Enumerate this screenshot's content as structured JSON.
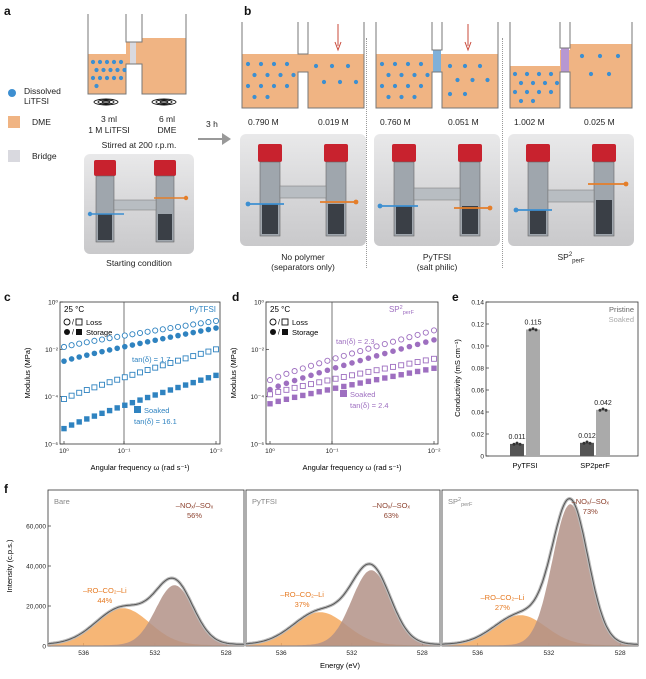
{
  "panel_labels": [
    "a",
    "b",
    "c",
    "d",
    "e",
    "f"
  ],
  "colors": {
    "orange": "#f0b483",
    "blue": "#3d8fd1",
    "bridge": "#d9d9df",
    "pytfsi": "#2f83c0",
    "sp2": "#9e6fc0",
    "pristine": "#555555",
    "soaked": "#aaaaaa",
    "ro_fill": "#f5a95e",
    "no_fill": "#b39287",
    "ro_text": "#e67a22",
    "no_text": "#8e4431"
  },
  "panel_a": {
    "legend": [
      {
        "label": "Dissolved LiTFSI",
        "icon": "blue-dot-icon"
      },
      {
        "label": "DME",
        "icon": "orange-square-icon"
      },
      {
        "label": "Bridge",
        "icon": "grey-square-icon"
      }
    ],
    "left_vol": "3 ml",
    "left_conc": "1 M LiTFSI",
    "right_vol": "6 ml",
    "right_conc": "DME",
    "stirred": "Stirred at 200 r.p.m.",
    "arrow_label": "3 h",
    "caption": "Starting condition"
  },
  "panel_b": {
    "cells": [
      {
        "left": "0.790 M",
        "right": "0.019 M",
        "caption1": "No polymer",
        "caption2": "(separators only)"
      },
      {
        "left": "0.760 M",
        "right": "0.051 M",
        "caption1": "PyTFSI",
        "caption2": "(salt philic)"
      },
      {
        "left": "1.002 M",
        "right": "0.025 M",
        "caption1": "SP",
        "caption_sup": "2",
        "caption_sub": "perF"
      }
    ]
  },
  "chart_data": [
    {
      "panel": "c",
      "type": "scatter",
      "temp": "25 °C",
      "title": "PyTFSI",
      "xlabel": "Angular frequency ω (rad s⁻¹)",
      "ylabel": "Modulus (MPa)",
      "x_ticks": [
        "10⁰",
        "10⁻¹",
        "10⁻²"
      ],
      "y_ticks": [
        "10⁰",
        "10⁻²",
        "10⁻⁴",
        "10⁻⁶"
      ],
      "ylim_log": [
        -6,
        0
      ],
      "legend_loss": "Loss",
      "legend_storage": "Storage",
      "annotations": [
        {
          "text": "tan(δ) = 1.7"
        },
        {
          "text": "Soaked"
        },
        {
          "text": "tan(δ) = 16.1"
        }
      ],
      "series": [
        {
          "kind": "pristine-loss",
          "marker": "open-circle",
          "log_start": -1.9,
          "log_end": -0.8
        },
        {
          "kind": "pristine-storage",
          "marker": "filled-circle",
          "log_start": -2.5,
          "log_end": -1.1
        },
        {
          "kind": "soaked-loss",
          "marker": "open-square",
          "log_start": -4.1,
          "log_end": -2.0
        },
        {
          "kind": "soaked-storage",
          "marker": "filled-square",
          "log_start": -5.35,
          "log_end": -3.1
        }
      ]
    },
    {
      "panel": "d",
      "type": "scatter",
      "temp": "25 °C",
      "title": "SP",
      "title_sup": "2",
      "title_sub": "perF",
      "xlabel": "Angular frequency ω (rad s⁻¹)",
      "ylabel": "Modulus (MPa)",
      "x_ticks": [
        "10⁰",
        "10⁻¹",
        "10⁻²"
      ],
      "y_ticks": [
        "10⁰",
        "10⁻²",
        "10⁻⁴",
        "10⁻⁶"
      ],
      "ylim_log": [
        -6,
        0
      ],
      "legend_loss": "Loss",
      "legend_storage": "Storage",
      "annotations": [
        {
          "text": "tan(δ) = 2.3"
        },
        {
          "text": "Soaked"
        },
        {
          "text": "tan(δ) = 2.4"
        }
      ],
      "series": [
        {
          "kind": "pristine-loss",
          "marker": "open-circle",
          "log_start": -3.3,
          "log_end": -1.2
        },
        {
          "kind": "pristine-storage",
          "marker": "filled-circle",
          "log_start": -3.7,
          "log_end": -1.6
        },
        {
          "kind": "soaked-loss",
          "marker": "open-square",
          "log_start": -3.9,
          "log_end": -2.4
        },
        {
          "kind": "soaked-storage",
          "marker": "filled-square",
          "log_start": -4.3,
          "log_end": -2.8
        }
      ]
    },
    {
      "panel": "e",
      "type": "bar",
      "ylabel": "Conductivity (mS cm⁻¹)",
      "ylim": [
        0,
        0.14
      ],
      "y_ticks": [
        "0",
        "0.02",
        "0.04",
        "0.06",
        "0.08",
        "0.10",
        "0.12",
        "0.14"
      ],
      "categories": [
        "PyTFSI",
        "SP2perF"
      ],
      "legend": [
        "Pristine",
        "Soaked"
      ],
      "series": [
        {
          "name": "Pristine",
          "values": [
            0.011,
            0.012
          ],
          "labels": [
            "0.011",
            "0.012"
          ]
        },
        {
          "name": "Soaked",
          "values": [
            0.115,
            0.042
          ],
          "labels": [
            "0.115",
            "0.042"
          ]
        }
      ]
    },
    {
      "panel": "f",
      "type": "line",
      "ylabel": "Intensity (c.p.s.)",
      "xlabel": "Energy (eV)",
      "y_ticks": [
        "0",
        "20,000",
        "40,000",
        "60,000"
      ],
      "x_ticks": [
        "536",
        "532",
        "528"
      ],
      "ylim": [
        0,
        78000
      ],
      "xlim": [
        538,
        527
      ],
      "subpanels": [
        {
          "name": "Bare",
          "ro_label": "–RO–CO₂–Li",
          "ro_pct": "44%",
          "no_label": "–NOₓ/–SOₓ",
          "no_pct": "56%",
          "ro_peak_ev": 533.8,
          "ro_height": 18500,
          "ro_width": 1.5,
          "no_peak_ev": 530.9,
          "no_height": 30000,
          "no_width": 1.05
        },
        {
          "name": "PyTFSI",
          "ro_label": "–RO–CO₂–Li",
          "ro_pct": "37%",
          "no_label": "–NOₓ/–SOₓ",
          "no_pct": "63%",
          "ro_peak_ev": 533.8,
          "ro_height": 16500,
          "ro_width": 1.5,
          "no_peak_ev": 530.9,
          "no_height": 37500,
          "no_width": 1.1
        },
        {
          "name": "SP",
          "name_sup": "2",
          "name_sub": "perF",
          "ro_label": "–RO–CO₂–Li",
          "ro_pct": "27%",
          "no_label": "–NOₓ/–SOₓ",
          "no_pct": "73%",
          "ro_peak_ev": 533.6,
          "ro_height": 15000,
          "ro_width": 1.45,
          "no_peak_ev": 530.8,
          "no_height": 70500,
          "no_width": 1.0
        }
      ]
    }
  ]
}
